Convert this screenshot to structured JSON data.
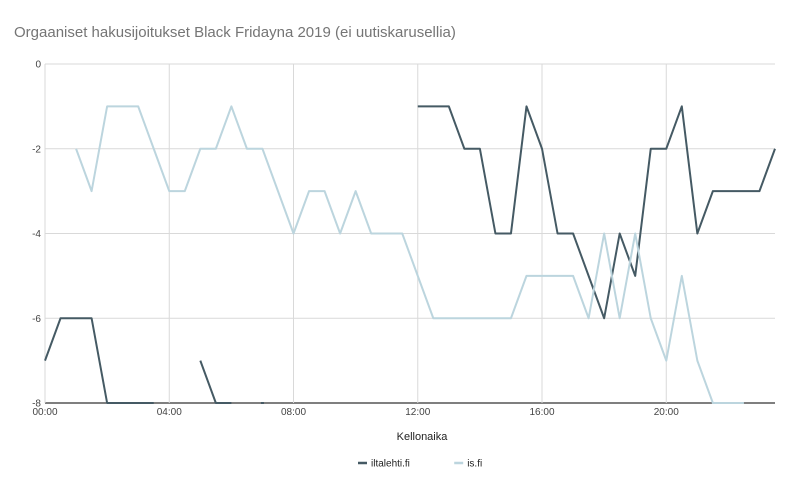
{
  "chart_data": {
    "type": "line",
    "title": "Orgaaniset hakusijoitukset Black Fridayna 2019 (ei uutiskarusellia)",
    "xlabel": "Kellonaika",
    "ylabel": "",
    "x_range_hours": [
      0,
      23.5
    ],
    "ylim": [
      -8,
      0
    ],
    "x_ticks": [
      {
        "hour": 0,
        "label": "00:00"
      },
      {
        "hour": 4,
        "label": "04:00"
      },
      {
        "hour": 8,
        "label": "08:00"
      },
      {
        "hour": 12,
        "label": "12:00"
      },
      {
        "hour": 16,
        "label": "16:00"
      },
      {
        "hour": 20,
        "label": "20:00"
      }
    ],
    "y_ticks": [
      0,
      -2,
      -4,
      -6,
      -8
    ],
    "grid": true,
    "legend_position": "bottom",
    "series": [
      {
        "name": "iltalehti.fi",
        "color": "#455a64",
        "values": [
          [
            0,
            -7
          ],
          [
            0.5,
            -6
          ],
          [
            1,
            -6
          ],
          [
            1.5,
            -6
          ],
          [
            2,
            -8
          ],
          [
            2.5,
            -8
          ],
          [
            3,
            -8
          ],
          [
            3.5,
            -8
          ],
          null,
          [
            5,
            -7
          ],
          [
            5.5,
            -8
          ],
          [
            6,
            -8
          ],
          null,
          [
            7,
            -8
          ],
          null,
          [
            12,
            -1
          ],
          [
            12.5,
            -1
          ],
          [
            13,
            -1
          ],
          [
            13.5,
            -2
          ],
          [
            14,
            -2
          ],
          [
            14.5,
            -4
          ],
          [
            15,
            -4
          ],
          [
            15.5,
            -1
          ],
          [
            16,
            -2
          ],
          [
            16.5,
            -4
          ],
          [
            17,
            -4
          ],
          [
            17.5,
            -5
          ],
          [
            18,
            -6
          ],
          [
            18.5,
            -4
          ],
          [
            19,
            -5
          ],
          [
            19.5,
            -2
          ],
          [
            20,
            -2
          ],
          [
            20.5,
            -1
          ],
          [
            21,
            -4
          ],
          [
            21.5,
            -3
          ],
          [
            22,
            -3
          ],
          [
            22.5,
            -3
          ],
          [
            23,
            -3
          ],
          [
            23.5,
            -2
          ]
        ]
      },
      {
        "name": "is.fi",
        "color": "#bcd5de",
        "values": [
          [
            1,
            -2
          ],
          [
            1.5,
            -3
          ],
          [
            2,
            -1
          ],
          [
            2.5,
            -1
          ],
          [
            3,
            -1
          ],
          [
            3.5,
            -2
          ],
          [
            4,
            -3
          ],
          [
            4.5,
            -3
          ],
          [
            5,
            -2
          ],
          [
            5.5,
            -2
          ],
          [
            6,
            -1
          ],
          [
            6.5,
            -2
          ],
          [
            7,
            -2
          ],
          [
            7.5,
            -3
          ],
          [
            8,
            -4
          ],
          [
            8.5,
            -3
          ],
          [
            9,
            -3
          ],
          [
            9.5,
            -4
          ],
          [
            10,
            -3
          ],
          [
            10.5,
            -4
          ],
          [
            11,
            -4
          ],
          [
            11.5,
            -4
          ],
          [
            12,
            -5
          ],
          [
            12.5,
            -6
          ],
          [
            13,
            -6
          ],
          [
            13.5,
            -6
          ],
          [
            14,
            -6
          ],
          [
            14.5,
            -6
          ],
          [
            15,
            -6
          ],
          [
            15.5,
            -5
          ],
          [
            16,
            -5
          ],
          [
            16.5,
            -5
          ],
          [
            17,
            -5
          ],
          [
            17.5,
            -6
          ],
          [
            18,
            -4
          ],
          [
            18.5,
            -6
          ],
          [
            19,
            -4
          ],
          [
            19.5,
            -6
          ],
          [
            20,
            -7
          ],
          [
            20.5,
            -5
          ],
          [
            21,
            -7
          ],
          [
            21.5,
            -8
          ],
          [
            22,
            -8
          ],
          [
            22.5,
            -8
          ]
        ]
      }
    ]
  }
}
